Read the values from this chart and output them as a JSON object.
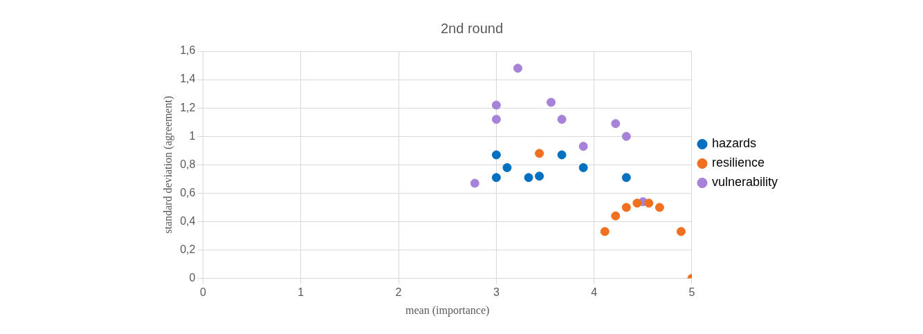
{
  "chart_data": {
    "type": "scatter",
    "title": "2nd round",
    "xlabel": "mean (importance)",
    "ylabel": "standard deviation (agreement)",
    "xlim": [
      0,
      5
    ],
    "xticks": [
      0,
      1,
      2,
      3,
      4,
      5
    ],
    "ylim": [
      0,
      1.6
    ],
    "yticks": [
      0,
      {
        "value": 0.2,
        "label": "0,2"
      },
      {
        "value": 0.4,
        "label": "0,4"
      },
      {
        "value": 0.6,
        "label": "0,6"
      },
      {
        "value": 0.8,
        "label": "0,8"
      },
      1,
      {
        "value": 1.2,
        "label": "1,2"
      },
      {
        "value": 1.4,
        "label": "1,4"
      },
      {
        "value": 1.6,
        "label": "1,6"
      }
    ],
    "grid": true,
    "legend": "right",
    "marker": "circle",
    "series": [
      {
        "name": "hazards",
        "color": "#0070c0",
        "x": [
          3,
          3,
          3.11,
          3.33,
          3.44,
          3.67,
          3.89,
          4.33
        ],
        "values": [
          0.87,
          0.71,
          0.78,
          0.71,
          0.72,
          0.87,
          0.78,
          0.71
        ]
      },
      {
        "name": "resilience",
        "color": "#f07020",
        "x": [
          3.44,
          4.11,
          4.22,
          4.33,
          4.44,
          4.56,
          4.67,
          4.89,
          5
        ],
        "values": [
          0.88,
          0.33,
          0.44,
          0.5,
          0.53,
          0.53,
          0.5,
          0.33,
          0
        ]
      },
      {
        "name": "vulnerability",
        "color": "#a682d8",
        "x": [
          2.78,
          3,
          3,
          3.22,
          3.56,
          3.67,
          3.89,
          4.22,
          4.33,
          4.5
        ],
        "values": [
          0.67,
          1.22,
          1.12,
          1.48,
          1.24,
          1.12,
          0.93,
          1.09,
          1,
          0.54
        ]
      }
    ]
  }
}
